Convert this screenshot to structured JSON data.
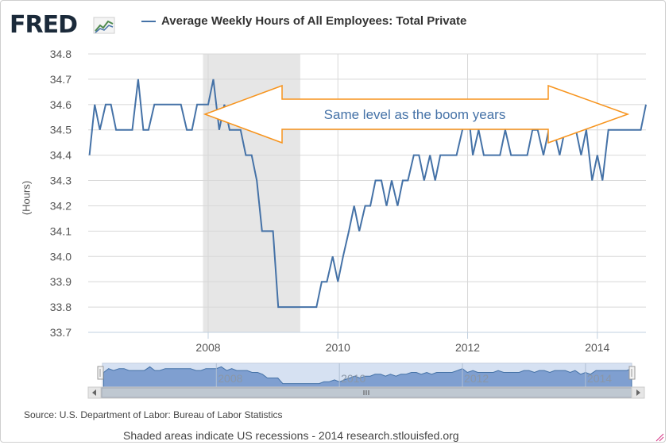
{
  "header": {
    "logo_text": "FRED",
    "logo_graph_icon": "fred-graph-icon",
    "series_title": "Average Weekly Hours of All Employees: Total Private",
    "series_color": "#4572a7"
  },
  "chart_data": {
    "type": "line",
    "title": "Average Weekly Hours of All Employees: Total Private",
    "xlabel": "",
    "ylabel": "(Hours)",
    "ylim": [
      33.7,
      34.8
    ],
    "xlim": [
      2006.15,
      2014.75
    ],
    "y_ticks": [
      "34.8",
      "34.7",
      "34.6",
      "34.5",
      "34.4",
      "34.3",
      "34.2",
      "34.1",
      "34.0",
      "33.9",
      "33.8",
      "33.7"
    ],
    "x_ticks": [
      "2008",
      "2010",
      "2012",
      "2014"
    ],
    "recession": {
      "start": 2007.92,
      "end": 2009.42,
      "label": "Shaded areas indicate US recessions"
    },
    "series": [
      {
        "name": "Average Weekly Hours of All Employees: Total Private",
        "x": [
          2006.17,
          2006.25,
          2006.33,
          2006.42,
          2006.5,
          2006.58,
          2006.67,
          2006.75,
          2006.83,
          2006.92,
          2007.0,
          2007.08,
          2007.17,
          2007.25,
          2007.33,
          2007.42,
          2007.5,
          2007.58,
          2007.67,
          2007.75,
          2007.83,
          2007.92,
          2008.0,
          2008.08,
          2008.17,
          2008.25,
          2008.33,
          2008.42,
          2008.5,
          2008.58,
          2008.67,
          2008.75,
          2008.83,
          2008.92,
          2009.0,
          2009.08,
          2009.17,
          2009.25,
          2009.33,
          2009.42,
          2009.5,
          2009.58,
          2009.67,
          2009.75,
          2009.83,
          2009.92,
          2010.0,
          2010.08,
          2010.17,
          2010.25,
          2010.33,
          2010.42,
          2010.5,
          2010.58,
          2010.67,
          2010.75,
          2010.83,
          2010.92,
          2011.0,
          2011.08,
          2011.17,
          2011.25,
          2011.33,
          2011.42,
          2011.5,
          2011.58,
          2011.67,
          2011.75,
          2011.83,
          2011.92,
          2012.0,
          2012.08,
          2012.17,
          2012.25,
          2012.33,
          2012.42,
          2012.5,
          2012.58,
          2012.67,
          2012.75,
          2012.83,
          2012.92,
          2013.0,
          2013.08,
          2013.17,
          2013.25,
          2013.33,
          2013.42,
          2013.5,
          2013.58,
          2013.67,
          2013.75,
          2013.83,
          2013.92,
          2014.0,
          2014.08,
          2014.17,
          2014.25,
          2014.33,
          2014.42,
          2014.5,
          2014.58,
          2014.67,
          2014.75
        ],
        "values": [
          34.4,
          34.6,
          34.5,
          34.6,
          34.6,
          34.5,
          34.5,
          34.5,
          34.5,
          34.7,
          34.5,
          34.5,
          34.6,
          34.6,
          34.6,
          34.6,
          34.6,
          34.6,
          34.5,
          34.5,
          34.6,
          34.6,
          34.6,
          34.7,
          34.5,
          34.6,
          34.5,
          34.5,
          34.5,
          34.4,
          34.4,
          34.3,
          34.1,
          34.1,
          34.1,
          33.8,
          33.8,
          33.8,
          33.8,
          33.8,
          33.8,
          33.8,
          33.8,
          33.9,
          33.9,
          34.0,
          33.9,
          34.0,
          34.1,
          34.2,
          34.1,
          34.2,
          34.2,
          34.3,
          34.3,
          34.2,
          34.3,
          34.2,
          34.3,
          34.3,
          34.4,
          34.4,
          34.3,
          34.4,
          34.3,
          34.4,
          34.4,
          34.4,
          34.4,
          34.5,
          34.6,
          34.4,
          34.5,
          34.4,
          34.4,
          34.4,
          34.4,
          34.5,
          34.4,
          34.4,
          34.4,
          34.4,
          34.5,
          34.5,
          34.4,
          34.5,
          34.5,
          34.4,
          34.5,
          34.5,
          34.5,
          34.4,
          34.5,
          34.3,
          34.4,
          34.3,
          34.5,
          34.5,
          34.5,
          34.5,
          34.5,
          34.5,
          34.5,
          34.6
        ]
      }
    ],
    "annotations": [
      {
        "text": "Same level as the boom years",
        "y": 34.56,
        "x_from": 2008.0,
        "x_to": 2014.6
      }
    ]
  },
  "navigator": {
    "ticks": [
      "2008",
      "2010",
      "2012",
      "2014"
    ],
    "scroll_left_icon": "arrow-left-icon",
    "scroll_right_icon": "arrow-right-icon",
    "grip_icon": "scrollbar-grip-icon"
  },
  "footer": {
    "source": "Source: U.S. Department of Labor: Bureau of Labor Statistics",
    "note": "Shaded areas indicate US recessions - 2014 research.stlouisfed.org"
  }
}
